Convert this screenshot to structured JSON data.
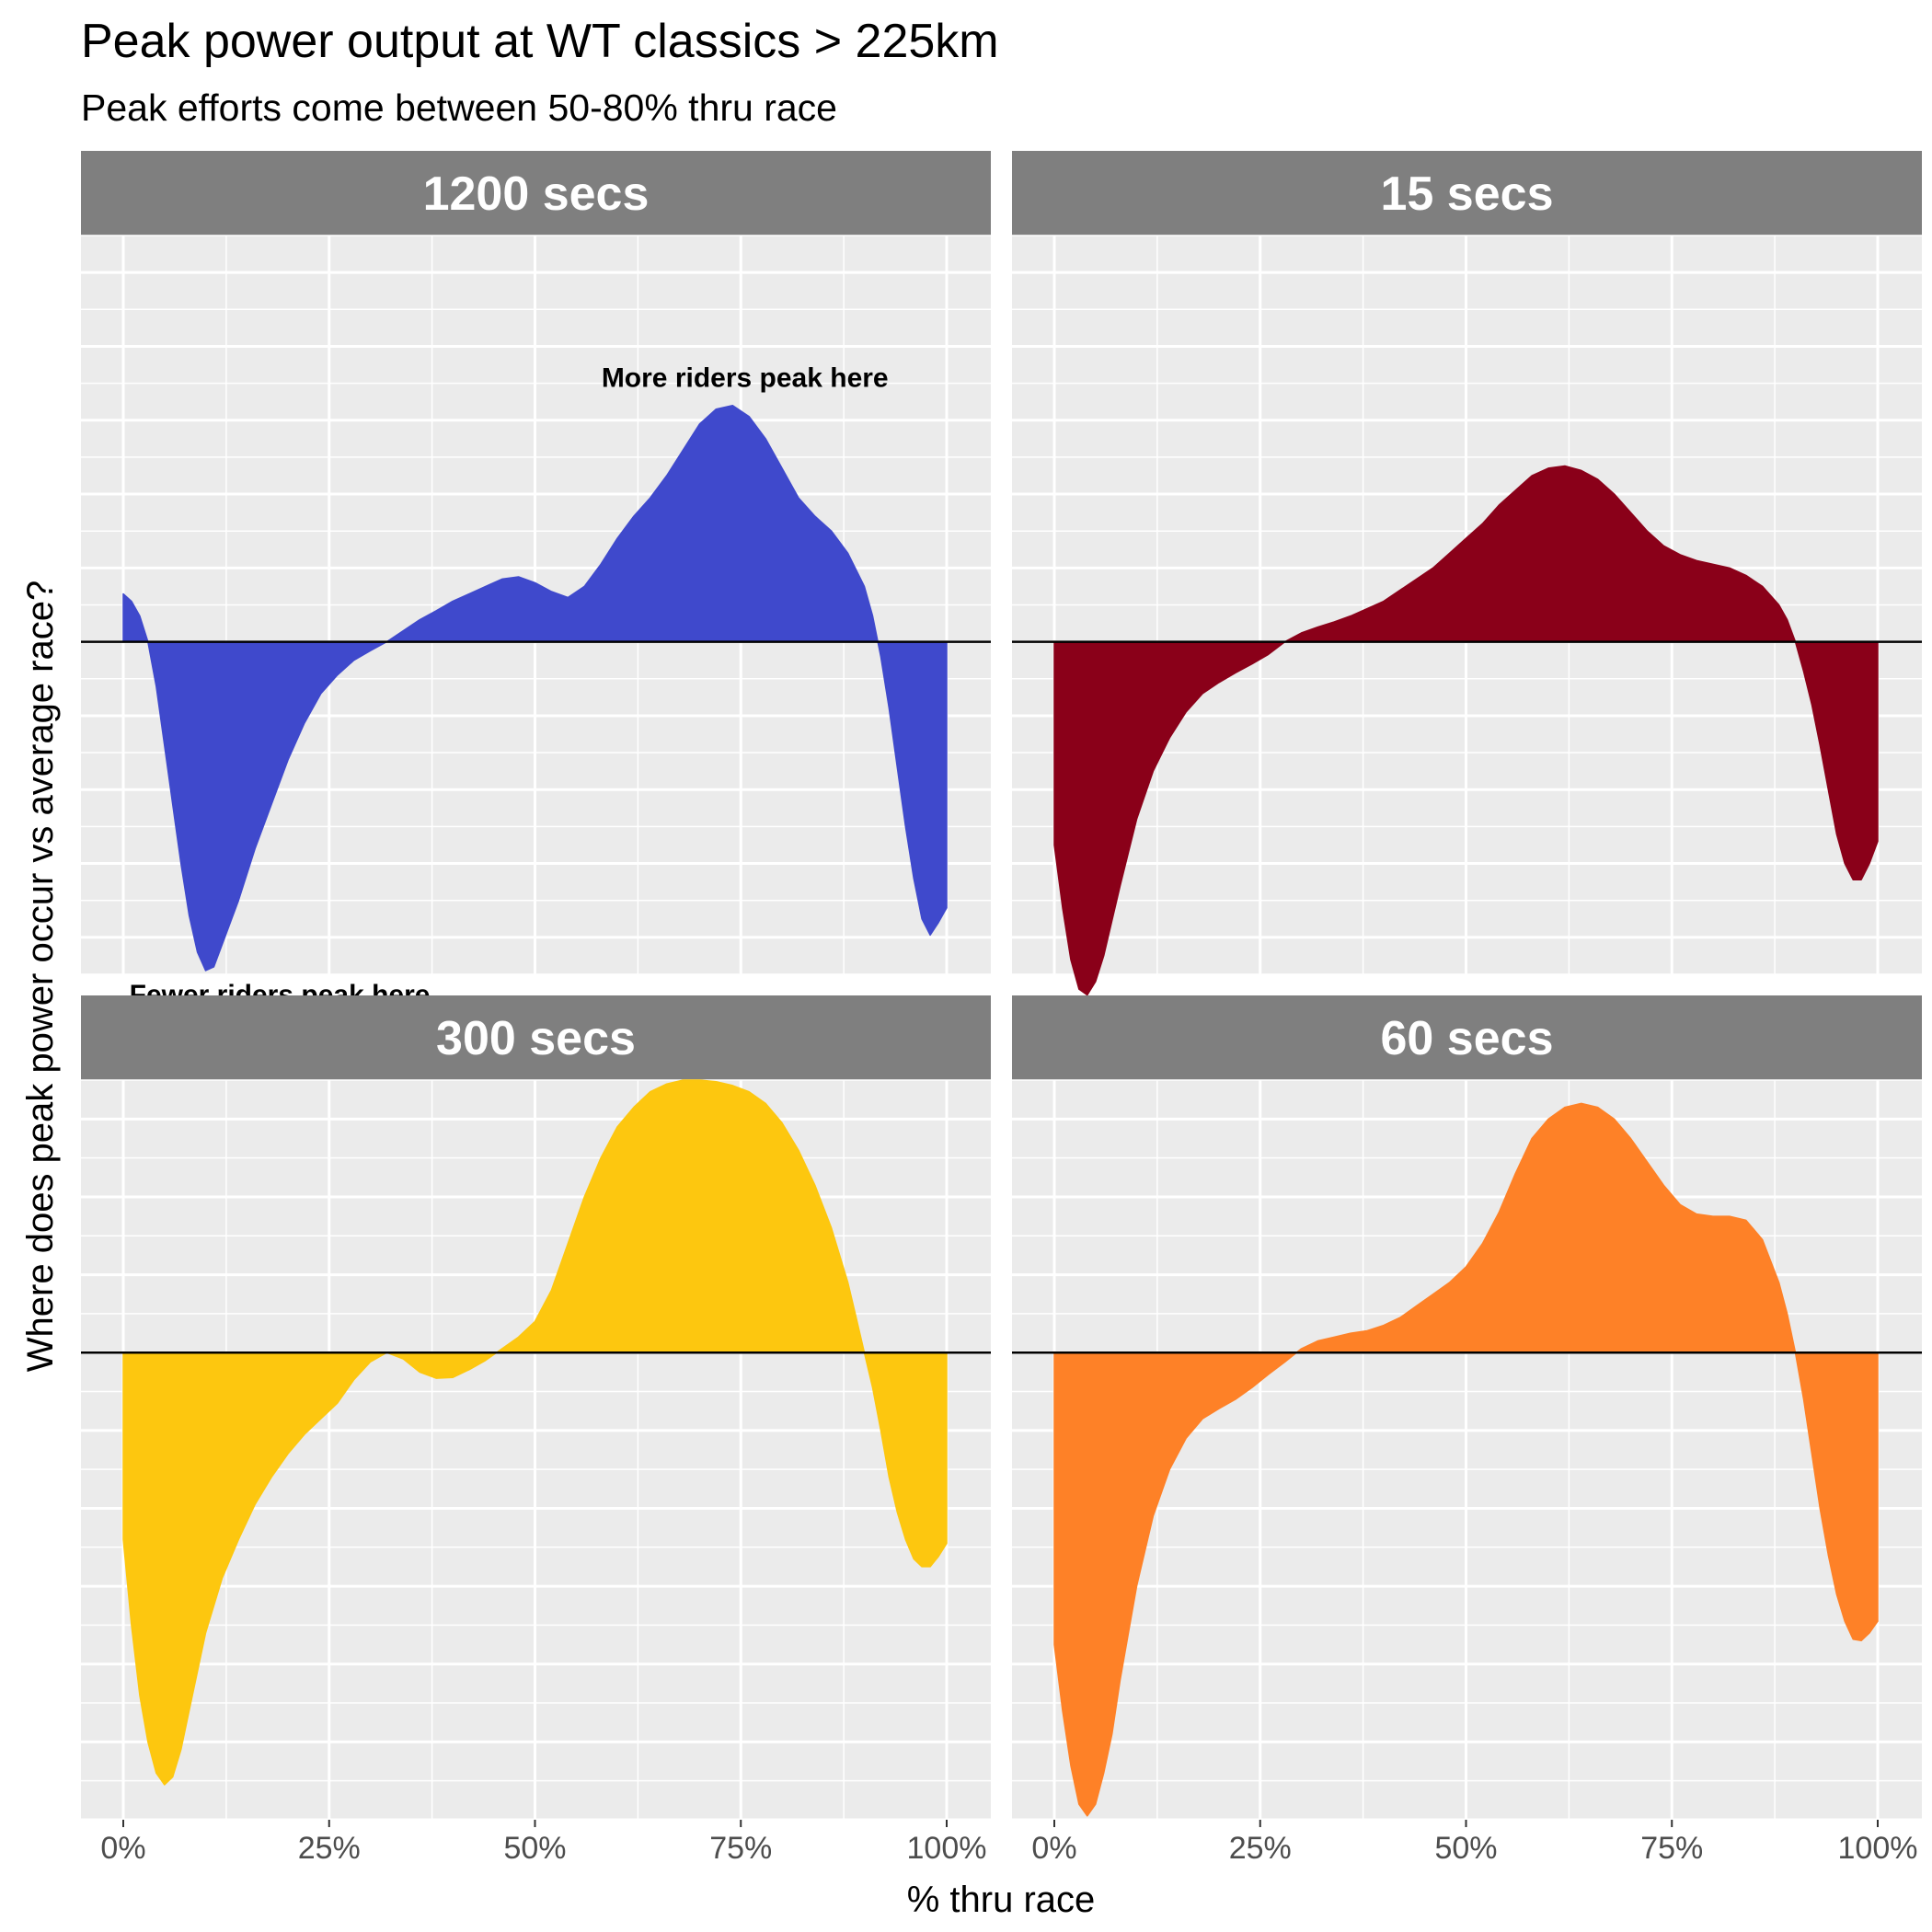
{
  "chart_data": {
    "type": "area",
    "title": "Peak power output at WT classics > 225km",
    "subtitle": "Peak efforts come between 50-80% thru race",
    "xlabel": "% thru race",
    "ylabel": "Where does peak power occur vs average race?",
    "xlim": [
      0,
      100
    ],
    "ylim_rows": [
      [
        -4.5,
        5.5
      ],
      [
        -6,
        3.5
      ]
    ],
    "x_ticks": [
      "0%",
      "25%",
      "50%",
      "75%",
      "100%"
    ],
    "x_tick_values": [
      0,
      25,
      50,
      75,
      100
    ],
    "y_tick_labels_shown": false,
    "grid": true,
    "reference_line_y": 0,
    "panels": [
      {
        "name": "1200 secs",
        "color": "#3f49cc",
        "annotations": [
          {
            "text": "More riders peak here",
            "x": 75.5,
            "y": 3.45
          },
          {
            "text": "Fewer riders peak here",
            "x": 19,
            "y": -4.9
          }
        ],
        "points": [
          [
            0,
            0.65
          ],
          [
            1,
            0.55
          ],
          [
            2,
            0.35
          ],
          [
            3,
            0.0
          ],
          [
            4,
            -0.6
          ],
          [
            5,
            -1.4
          ],
          [
            6,
            -2.2
          ],
          [
            7,
            -3.0
          ],
          [
            8,
            -3.7
          ],
          [
            9,
            -4.2
          ],
          [
            10,
            -4.45
          ],
          [
            11,
            -4.4
          ],
          [
            12,
            -4.1
          ],
          [
            14,
            -3.5
          ],
          [
            16,
            -2.8
          ],
          [
            18,
            -2.2
          ],
          [
            20,
            -1.6
          ],
          [
            22,
            -1.1
          ],
          [
            24,
            -0.7
          ],
          [
            26,
            -0.45
          ],
          [
            28,
            -0.25
          ],
          [
            30,
            -0.12
          ],
          [
            32,
            0.0
          ],
          [
            34,
            0.15
          ],
          [
            36,
            0.3
          ],
          [
            38,
            0.42
          ],
          [
            40,
            0.55
          ],
          [
            42,
            0.65
          ],
          [
            44,
            0.75
          ],
          [
            46,
            0.85
          ],
          [
            48,
            0.88
          ],
          [
            50,
            0.8
          ],
          [
            52,
            0.68
          ],
          [
            54,
            0.6
          ],
          [
            56,
            0.75
          ],
          [
            58,
            1.05
          ],
          [
            60,
            1.4
          ],
          [
            62,
            1.7
          ],
          [
            64,
            1.95
          ],
          [
            66,
            2.25
          ],
          [
            68,
            2.6
          ],
          [
            70,
            2.95
          ],
          [
            72,
            3.15
          ],
          [
            74,
            3.2
          ],
          [
            76,
            3.05
          ],
          [
            78,
            2.75
          ],
          [
            80,
            2.35
          ],
          [
            82,
            1.95
          ],
          [
            84,
            1.7
          ],
          [
            86,
            1.5
          ],
          [
            88,
            1.2
          ],
          [
            90,
            0.75
          ],
          [
            91,
            0.35
          ],
          [
            92,
            -0.2
          ],
          [
            93,
            -0.9
          ],
          [
            94,
            -1.7
          ],
          [
            95,
            -2.5
          ],
          [
            96,
            -3.2
          ],
          [
            97,
            -3.75
          ],
          [
            98,
            -3.97
          ],
          [
            99,
            -3.8
          ],
          [
            100,
            -3.6
          ]
        ]
      },
      {
        "name": "15 secs",
        "color": "#8a0019",
        "annotations": [],
        "points": [
          [
            0,
            -2.75
          ],
          [
            1,
            -3.6
          ],
          [
            2,
            -4.3
          ],
          [
            3,
            -4.7
          ],
          [
            4,
            -4.78
          ],
          [
            5,
            -4.6
          ],
          [
            6,
            -4.25
          ],
          [
            8,
            -3.3
          ],
          [
            10,
            -2.4
          ],
          [
            12,
            -1.75
          ],
          [
            14,
            -1.3
          ],
          [
            16,
            -0.95
          ],
          [
            18,
            -0.7
          ],
          [
            20,
            -0.55
          ],
          [
            22,
            -0.42
          ],
          [
            24,
            -0.3
          ],
          [
            26,
            -0.17
          ],
          [
            28,
            0.0
          ],
          [
            30,
            0.12
          ],
          [
            32,
            0.2
          ],
          [
            34,
            0.27
          ],
          [
            36,
            0.35
          ],
          [
            38,
            0.45
          ],
          [
            40,
            0.55
          ],
          [
            42,
            0.7
          ],
          [
            44,
            0.85
          ],
          [
            46,
            1.0
          ],
          [
            48,
            1.2
          ],
          [
            50,
            1.4
          ],
          [
            52,
            1.6
          ],
          [
            54,
            1.85
          ],
          [
            56,
            2.05
          ],
          [
            58,
            2.25
          ],
          [
            60,
            2.35
          ],
          [
            62,
            2.38
          ],
          [
            64,
            2.32
          ],
          [
            66,
            2.2
          ],
          [
            68,
            2.0
          ],
          [
            70,
            1.75
          ],
          [
            72,
            1.5
          ],
          [
            74,
            1.3
          ],
          [
            76,
            1.18
          ],
          [
            78,
            1.1
          ],
          [
            80,
            1.05
          ],
          [
            82,
            1.0
          ],
          [
            84,
            0.9
          ],
          [
            86,
            0.75
          ],
          [
            88,
            0.5
          ],
          [
            89,
            0.3
          ],
          [
            90,
            0.0
          ],
          [
            91,
            -0.4
          ],
          [
            92,
            -0.85
          ],
          [
            93,
            -1.4
          ],
          [
            94,
            -2.0
          ],
          [
            95,
            -2.6
          ],
          [
            96,
            -3.0
          ],
          [
            97,
            -3.22
          ],
          [
            98,
            -3.22
          ],
          [
            99,
            -3.0
          ],
          [
            100,
            -2.7
          ]
        ]
      },
      {
        "name": "300 secs",
        "color": "#fdc70f",
        "annotations": [],
        "points": [
          [
            0,
            -2.4
          ],
          [
            1,
            -3.5
          ],
          [
            2,
            -4.4
          ],
          [
            3,
            -5.0
          ],
          [
            4,
            -5.4
          ],
          [
            5,
            -5.55
          ],
          [
            6,
            -5.45
          ],
          [
            7,
            -5.1
          ],
          [
            8,
            -4.6
          ],
          [
            10,
            -3.6
          ],
          [
            12,
            -2.9
          ],
          [
            14,
            -2.4
          ],
          [
            16,
            -1.95
          ],
          [
            18,
            -1.6
          ],
          [
            20,
            -1.3
          ],
          [
            22,
            -1.05
          ],
          [
            24,
            -0.85
          ],
          [
            26,
            -0.65
          ],
          [
            28,
            -0.35
          ],
          [
            30,
            -0.12
          ],
          [
            32,
            0.0
          ],
          [
            34,
            -0.08
          ],
          [
            36,
            -0.25
          ],
          [
            38,
            -0.33
          ],
          [
            40,
            -0.32
          ],
          [
            42,
            -0.22
          ],
          [
            44,
            -0.1
          ],
          [
            46,
            0.05
          ],
          [
            48,
            0.2
          ],
          [
            50,
            0.4
          ],
          [
            52,
            0.8
          ],
          [
            54,
            1.4
          ],
          [
            56,
            2.0
          ],
          [
            58,
            2.5
          ],
          [
            60,
            2.9
          ],
          [
            62,
            3.15
          ],
          [
            64,
            3.35
          ],
          [
            66,
            3.45
          ],
          [
            68,
            3.5
          ],
          [
            70,
            3.5
          ],
          [
            72,
            3.48
          ],
          [
            74,
            3.43
          ],
          [
            76,
            3.35
          ],
          [
            78,
            3.2
          ],
          [
            80,
            2.95
          ],
          [
            82,
            2.6
          ],
          [
            84,
            2.15
          ],
          [
            86,
            1.6
          ],
          [
            88,
            0.9
          ],
          [
            89,
            0.45
          ],
          [
            90,
            0.0
          ],
          [
            91,
            -0.45
          ],
          [
            92,
            -1.0
          ],
          [
            93,
            -1.6
          ],
          [
            94,
            -2.05
          ],
          [
            95,
            -2.4
          ],
          [
            96,
            -2.65
          ],
          [
            97,
            -2.75
          ],
          [
            98,
            -2.75
          ],
          [
            99,
            -2.62
          ],
          [
            100,
            -2.45
          ]
        ]
      },
      {
        "name": "60 secs",
        "color": "#fe8127",
        "annotations": [],
        "points": [
          [
            0,
            -3.75
          ],
          [
            1,
            -4.6
          ],
          [
            2,
            -5.3
          ],
          [
            3,
            -5.8
          ],
          [
            4,
            -5.95
          ],
          [
            5,
            -5.8
          ],
          [
            6,
            -5.4
          ],
          [
            7,
            -4.9
          ],
          [
            8,
            -4.2
          ],
          [
            10,
            -3.0
          ],
          [
            12,
            -2.1
          ],
          [
            14,
            -1.5
          ],
          [
            16,
            -1.1
          ],
          [
            18,
            -0.85
          ],
          [
            20,
            -0.72
          ],
          [
            22,
            -0.6
          ],
          [
            24,
            -0.45
          ],
          [
            26,
            -0.28
          ],
          [
            28,
            -0.12
          ],
          [
            30,
            0.05
          ],
          [
            32,
            0.15
          ],
          [
            34,
            0.2
          ],
          [
            36,
            0.25
          ],
          [
            38,
            0.28
          ],
          [
            40,
            0.35
          ],
          [
            42,
            0.45
          ],
          [
            44,
            0.6
          ],
          [
            46,
            0.75
          ],
          [
            48,
            0.9
          ],
          [
            50,
            1.1
          ],
          [
            52,
            1.4
          ],
          [
            54,
            1.8
          ],
          [
            56,
            2.3
          ],
          [
            58,
            2.75
          ],
          [
            60,
            3.0
          ],
          [
            62,
            3.15
          ],
          [
            64,
            3.2
          ],
          [
            66,
            3.15
          ],
          [
            68,
            3.0
          ],
          [
            70,
            2.75
          ],
          [
            72,
            2.45
          ],
          [
            74,
            2.15
          ],
          [
            76,
            1.9
          ],
          [
            78,
            1.78
          ],
          [
            80,
            1.75
          ],
          [
            82,
            1.75
          ],
          [
            84,
            1.7
          ],
          [
            86,
            1.45
          ],
          [
            88,
            0.9
          ],
          [
            89,
            0.5
          ],
          [
            90,
            0.0
          ],
          [
            91,
            -0.6
          ],
          [
            92,
            -1.3
          ],
          [
            93,
            -2.0
          ],
          [
            94,
            -2.6
          ],
          [
            95,
            -3.1
          ],
          [
            96,
            -3.45
          ],
          [
            97,
            -3.68
          ],
          [
            98,
            -3.7
          ],
          [
            99,
            -3.6
          ],
          [
            100,
            -3.45
          ]
        ]
      }
    ]
  }
}
